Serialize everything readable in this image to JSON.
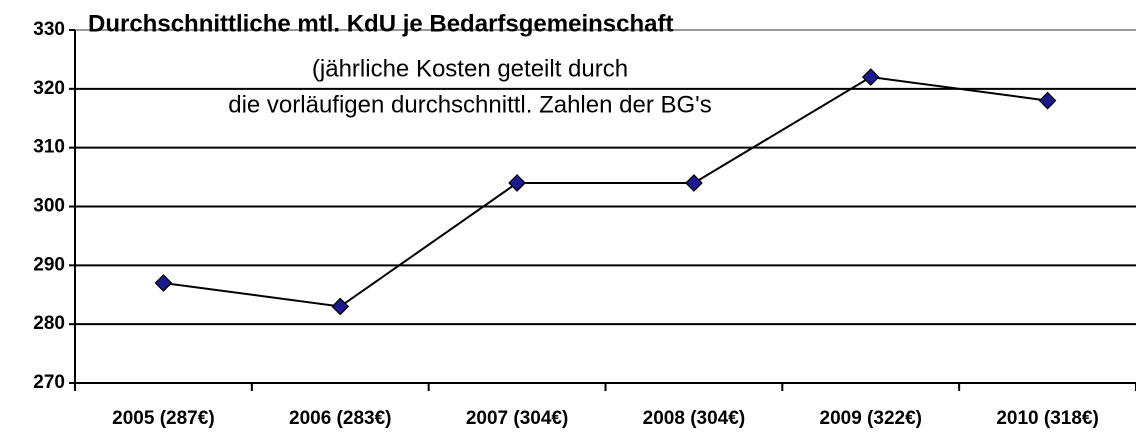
{
  "chart_data": {
    "type": "line",
    "title": "Durchschnittliche mtl. KdU je Bedarfsgemeinschaft",
    "subtitle": [
      "(jährliche Kosten geteilt durch",
      "die vorläufigen durchschnittl. Zahlen der BG's"
    ],
    "categories": [
      "2005 (287€)",
      "2006 (283€)",
      "2007 (304€)",
      "2008 (304€)",
      "2009 (322€)",
      "2010 (318€)"
    ],
    "values": [
      287,
      283,
      304,
      304,
      322,
      318
    ],
    "color": "#000000",
    "marker_color": "#1a1a8c",
    "ylim": [
      270,
      330
    ],
    "yticks": [
      270,
      280,
      290,
      300,
      310,
      320,
      330
    ],
    "grid": true
  }
}
